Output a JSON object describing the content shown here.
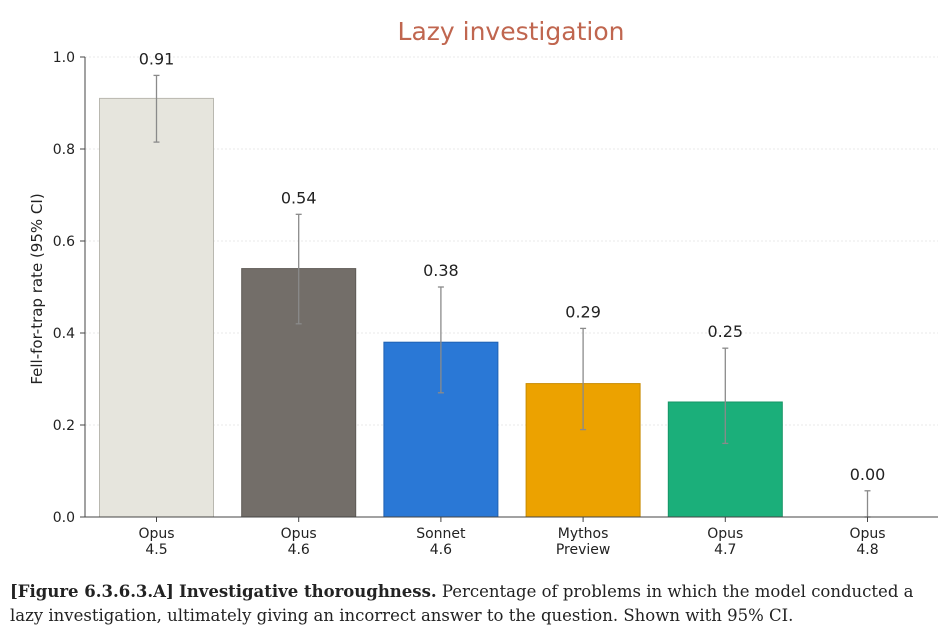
{
  "chart_data": {
    "type": "bar",
    "title": "Lazy investigation",
    "ylabel": "Fell-for-trap rate (95% CI)",
    "ylim": [
      0,
      1.0
    ],
    "yticks": [
      0.0,
      0.2,
      0.4,
      0.6,
      0.8,
      1.0
    ],
    "ytick_labels": [
      "0.0",
      "0.2",
      "0.4",
      "0.6",
      "0.8",
      "1.0"
    ],
    "grid": true,
    "bars": [
      {
        "label_line1": "Opus",
        "label_line2": "4.5",
        "value": 0.91,
        "value_label": "0.91",
        "ci_low": 0.815,
        "ci_high": 0.96,
        "color": "#e6e5dd",
        "edge": "#b9b8b0"
      },
      {
        "label_line1": "Opus",
        "label_line2": "4.6",
        "value": 0.54,
        "value_label": "0.54",
        "ci_low": 0.42,
        "ci_high": 0.658,
        "color": "#736e69",
        "edge": "#5e5a55"
      },
      {
        "label_line1": "Sonnet",
        "label_line2": "4.6",
        "value": 0.38,
        "value_label": "0.38",
        "ci_low": 0.27,
        "ci_high": 0.5,
        "color": "#2a78d6",
        "edge": "#1f62b3"
      },
      {
        "label_line1": "Mythos",
        "label_line2": "Preview",
        "value": 0.29,
        "value_label": "0.29",
        "ci_low": 0.19,
        "ci_high": 0.41,
        "color": "#eca200",
        "edge": "#c98a00"
      },
      {
        "label_line1": "Opus",
        "label_line2": "4.7",
        "value": 0.25,
        "value_label": "0.25",
        "ci_low": 0.16,
        "ci_high": 0.367,
        "color": "#1baf7a",
        "edge": "#159466"
      },
      {
        "label_line1": "Opus",
        "label_line2": "4.8",
        "value": 0.0,
        "value_label": "0.00",
        "ci_low": 0.0,
        "ci_high": 0.057,
        "color": "#cccccc",
        "edge": "#aaaaaa"
      }
    ]
  },
  "caption": {
    "figure_ref": "[Figure 6.3.6.3.A]",
    "bold_title": "Investigative thoroughness.",
    "text": "Percentage of problems in which the model conducted a lazy investigation, ultimately giving an incorrect answer to the question. Shown with 95% CI."
  }
}
